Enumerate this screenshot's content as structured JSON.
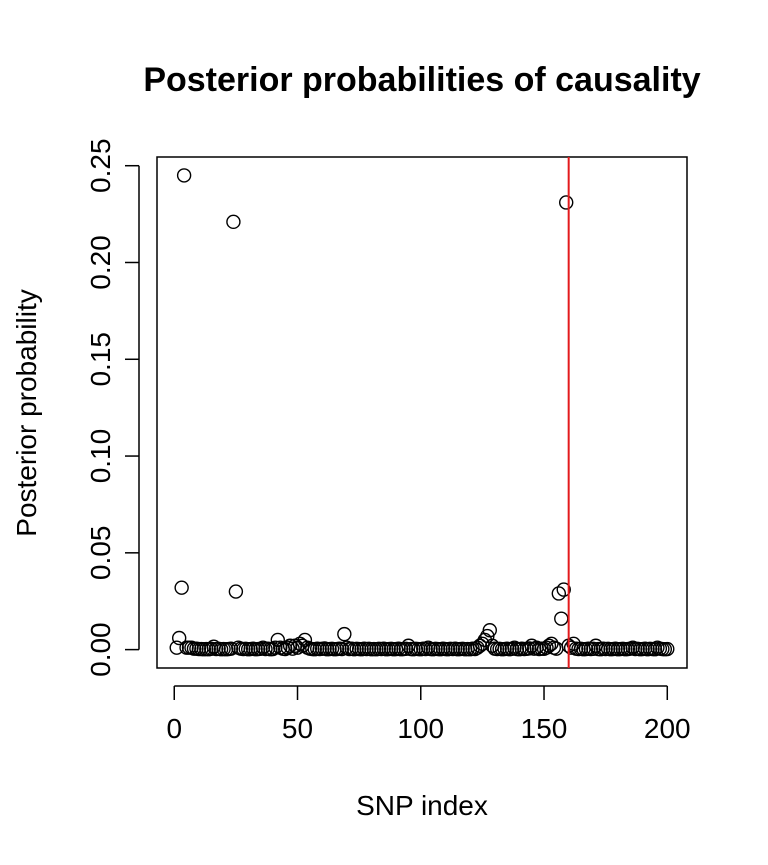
{
  "chart_data": {
    "type": "scatter",
    "title": "Posterior probabilities of causality",
    "xlabel": "SNP index",
    "ylabel": "Posterior probability",
    "xlim": [
      -7,
      208
    ],
    "ylim": [
      -0.0095,
      0.2545
    ],
    "xticks": [
      0,
      50,
      100,
      150,
      200
    ],
    "xtick_labels": [
      "0",
      "50",
      "100",
      "150",
      "200"
    ],
    "yticks": [
      0.0,
      0.05,
      0.1,
      0.15,
      0.2,
      0.25
    ],
    "ytick_labels": [
      "0.00",
      "0.05",
      "0.10",
      "0.15",
      "0.20",
      "0.25"
    ],
    "grid": false,
    "marker": "open-circle",
    "point_color": "#000000",
    "vline": {
      "x": 160,
      "color": "#e31a1c"
    },
    "series": [
      {
        "points": [
          [
            1,
            0.001
          ],
          [
            2,
            0.006
          ],
          [
            3,
            0.032
          ],
          [
            4,
            0.245
          ],
          [
            5,
            0.001
          ],
          [
            6,
            0.001
          ],
          [
            7,
            0.001
          ],
          [
            8,
            0.0005
          ],
          [
            9,
            0.0005
          ],
          [
            10,
            0.0003
          ],
          [
            11,
            0.0003
          ],
          [
            12,
            0.0002
          ],
          [
            13,
            0.0003
          ],
          [
            14,
            0.0002
          ],
          [
            15,
            0.0004
          ],
          [
            16,
            0.0015
          ],
          [
            17,
            0.0003
          ],
          [
            18,
            0.0004
          ],
          [
            19,
            0.0002
          ],
          [
            20,
            0.0003
          ],
          [
            21,
            0.0002
          ],
          [
            22,
            0.0003
          ],
          [
            23,
            0.0005
          ],
          [
            24,
            0.221
          ],
          [
            25,
            0.03
          ],
          [
            26,
            0.001
          ],
          [
            27,
            0.0005
          ],
          [
            28,
            0.0003
          ],
          [
            29,
            0.0004
          ],
          [
            30,
            0.0002
          ],
          [
            31,
            0.0003
          ],
          [
            32,
            0.0005
          ],
          [
            33,
            0.0002
          ],
          [
            34,
            0.0003
          ],
          [
            35,
            0.0004
          ],
          [
            36,
            0.001
          ],
          [
            37,
            0.0003
          ],
          [
            38,
            0.0005
          ],
          [
            39,
            0.0002
          ],
          [
            40,
            0.0003
          ],
          [
            41,
            0.001
          ],
          [
            42,
            0.005
          ],
          [
            43,
            0.001
          ],
          [
            44,
            0.0005
          ],
          [
            45,
            0.0003
          ],
          [
            46,
            0.001
          ],
          [
            47,
            0.002
          ],
          [
            48,
            0.0005
          ],
          [
            49,
            0.002
          ],
          [
            50,
            0.001
          ],
          [
            51,
            0.003
          ],
          [
            52,
            0.002
          ],
          [
            53,
            0.005
          ],
          [
            54,
            0.001
          ],
          [
            55,
            0.0005
          ],
          [
            56,
            0.0003
          ],
          [
            57,
            0.0002
          ],
          [
            58,
            0.0005
          ],
          [
            59,
            0.0003
          ],
          [
            60,
            0.0004
          ],
          [
            61,
            0.0006
          ],
          [
            62,
            0.0002
          ],
          [
            63,
            0.0003
          ],
          [
            64,
            0.0004
          ],
          [
            65,
            0.0002
          ],
          [
            66,
            0.0003
          ],
          [
            67,
            0.0005
          ],
          [
            68,
            0.0003
          ],
          [
            69,
            0.008
          ],
          [
            70,
            0.001
          ],
          [
            71,
            0.0003
          ],
          [
            72,
            0.0005
          ],
          [
            73,
            0.0002
          ],
          [
            74,
            0.0004
          ],
          [
            75,
            0.0003
          ],
          [
            76,
            0.0002
          ],
          [
            77,
            0.0005
          ],
          [
            78,
            0.0003
          ],
          [
            79,
            0.0004
          ],
          [
            80,
            0.0002
          ],
          [
            81,
            0.0003
          ],
          [
            82,
            0.0002
          ],
          [
            83,
            0.0004
          ],
          [
            84,
            0.0003
          ],
          [
            85,
            0.0005
          ],
          [
            86,
            0.0002
          ],
          [
            87,
            0.0003
          ],
          [
            88,
            0.0004
          ],
          [
            89,
            0.0002
          ],
          [
            90,
            0.0003
          ],
          [
            91,
            0.0005
          ],
          [
            92,
            0.0002
          ],
          [
            93,
            0.0003
          ],
          [
            94,
            0.0004
          ],
          [
            95,
            0.002
          ],
          [
            96,
            0.0003
          ],
          [
            97,
            0.0002
          ],
          [
            98,
            0.0004
          ],
          [
            99,
            0.0003
          ],
          [
            100,
            0.0002
          ],
          [
            101,
            0.0005
          ],
          [
            102,
            0.0003
          ],
          [
            103,
            0.001
          ],
          [
            104,
            0.0003
          ],
          [
            105,
            0.0002
          ],
          [
            106,
            0.0004
          ],
          [
            107,
            0.0003
          ],
          [
            108,
            0.0002
          ],
          [
            109,
            0.0005
          ],
          [
            110,
            0.0003
          ],
          [
            111,
            0.0002
          ],
          [
            112,
            0.0004
          ],
          [
            113,
            0.0003
          ],
          [
            114,
            0.0005
          ],
          [
            115,
            0.0002
          ],
          [
            116,
            0.0003
          ],
          [
            117,
            0.0004
          ],
          [
            118,
            0.0002
          ],
          [
            119,
            0.0003
          ],
          [
            120,
            0.0002
          ],
          [
            121,
            0.0005
          ],
          [
            122,
            0.0003
          ],
          [
            123,
            0.001
          ],
          [
            124,
            0.002
          ],
          [
            125,
            0.003
          ],
          [
            126,
            0.005
          ],
          [
            127,
            0.007
          ],
          [
            128,
            0.01
          ],
          [
            129,
            0.002
          ],
          [
            130,
            0.0005
          ],
          [
            131,
            0.0003
          ],
          [
            132,
            0.0004
          ],
          [
            133,
            0.0002
          ],
          [
            134,
            0.0003
          ],
          [
            135,
            0.0005
          ],
          [
            136,
            0.0002
          ],
          [
            137,
            0.0004
          ],
          [
            138,
            0.001
          ],
          [
            139,
            0.0003
          ],
          [
            140,
            0.0002
          ],
          [
            141,
            0.0005
          ],
          [
            142,
            0.0003
          ],
          [
            143,
            0.0004
          ],
          [
            144,
            0.0006
          ],
          [
            145,
            0.002
          ],
          [
            146,
            0.0005
          ],
          [
            147,
            0.001
          ],
          [
            148,
            0.0003
          ],
          [
            149,
            0.0005
          ],
          [
            150,
            0.0004
          ],
          [
            151,
            0.001
          ],
          [
            152,
            0.002
          ],
          [
            153,
            0.003
          ],
          [
            154,
            0.001
          ],
          [
            155,
            0.0005
          ],
          [
            156,
            0.029
          ],
          [
            157,
            0.016
          ],
          [
            158,
            0.031
          ],
          [
            159,
            0.231
          ],
          [
            160,
            0.002
          ],
          [
            161,
            0.001
          ],
          [
            162,
            0.003
          ],
          [
            163,
            0.0005
          ],
          [
            164,
            0.0003
          ],
          [
            165,
            0.0004
          ],
          [
            166,
            0.0002
          ],
          [
            167,
            0.0003
          ],
          [
            168,
            0.0005
          ],
          [
            169,
            0.0003
          ],
          [
            170,
            0.0004
          ],
          [
            171,
            0.002
          ],
          [
            172,
            0.0003
          ],
          [
            173,
            0.0002
          ],
          [
            174,
            0.0005
          ],
          [
            175,
            0.0003
          ],
          [
            176,
            0.0004
          ],
          [
            177,
            0.0002
          ],
          [
            178,
            0.0003
          ],
          [
            179,
            0.0005
          ],
          [
            180,
            0.0002
          ],
          [
            181,
            0.0003
          ],
          [
            182,
            0.0004
          ],
          [
            183,
            0.0002
          ],
          [
            184,
            0.0003
          ],
          [
            185,
            0.0005
          ],
          [
            186,
            0.001
          ],
          [
            187,
            0.0003
          ],
          [
            188,
            0.0004
          ],
          [
            189,
            0.0002
          ],
          [
            190,
            0.0003
          ],
          [
            191,
            0.0005
          ],
          [
            192,
            0.0002
          ],
          [
            193,
            0.0004
          ],
          [
            194,
            0.0003
          ],
          [
            195,
            0.0002
          ],
          [
            196,
            0.001
          ],
          [
            197,
            0.0005
          ],
          [
            198,
            0.0003
          ],
          [
            199,
            0.0002
          ],
          [
            200,
            0.0003
          ]
        ]
      }
    ]
  }
}
